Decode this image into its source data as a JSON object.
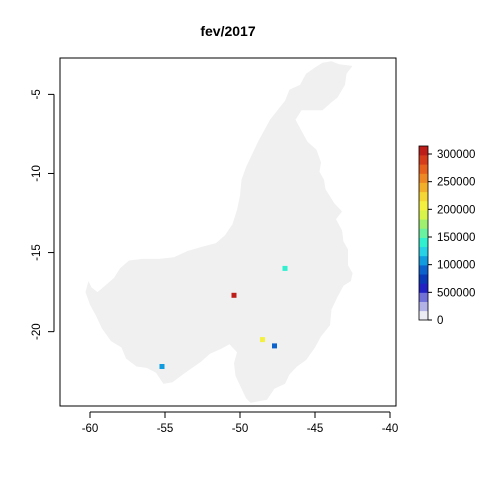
{
  "chart_data": {
    "type": "heatmap",
    "title": "fev/2017",
    "xlabel": "",
    "ylabel": "",
    "xlim": [
      -62,
      -39.6
    ],
    "ylim": [
      -24.7,
      -2.7
    ],
    "x_ticks": [
      {
        "value": -60,
        "label": "-60"
      },
      {
        "value": -55,
        "label": "-55"
      },
      {
        "value": -50,
        "label": "-50"
      },
      {
        "value": -45,
        "label": "-45"
      },
      {
        "value": -40,
        "label": "-40"
      }
    ],
    "y_ticks": [
      {
        "value": -5,
        "label": "-5"
      },
      {
        "value": -10,
        "label": "-10"
      },
      {
        "value": -15,
        "label": "-15"
      },
      {
        "value": -20,
        "label": "-20"
      }
    ],
    "region_color": "#f0f0f0",
    "region_outline": [
      [
        -49.3,
        -24.5
      ],
      [
        -48.2,
        -24.3
      ],
      [
        -47.7,
        -23.6
      ],
      [
        -47.0,
        -23.3
      ],
      [
        -46.7,
        -22.7
      ],
      [
        -46.2,
        -22.2
      ],
      [
        -45.6,
        -21.8
      ],
      [
        -45.0,
        -21.0
      ],
      [
        -44.6,
        -20.3
      ],
      [
        -44.0,
        -19.6
      ],
      [
        -43.9,
        -18.6
      ],
      [
        -43.5,
        -17.8
      ],
      [
        -43.1,
        -17.1
      ],
      [
        -42.6,
        -16.8
      ],
      [
        -42.5,
        -16.3
      ],
      [
        -42.8,
        -15.8
      ],
      [
        -42.8,
        -14.8
      ],
      [
        -43.1,
        -14.3
      ],
      [
        -43.2,
        -13.6
      ],
      [
        -43.6,
        -12.9
      ],
      [
        -43.2,
        -12.4
      ],
      [
        -43.7,
        -11.9
      ],
      [
        -44.3,
        -11.0
      ],
      [
        -44.4,
        -10.4
      ],
      [
        -44.7,
        -9.9
      ],
      [
        -44.6,
        -9.3
      ],
      [
        -44.9,
        -8.5
      ],
      [
        -45.5,
        -8.0
      ],
      [
        -45.9,
        -7.3
      ],
      [
        -46.3,
        -6.6
      ],
      [
        -45.9,
        -6.0
      ],
      [
        -44.5,
        -6.0
      ],
      [
        -43.9,
        -5.5
      ],
      [
        -43.5,
        -5.2
      ],
      [
        -43.0,
        -4.4
      ],
      [
        -42.9,
        -3.7
      ],
      [
        -42.5,
        -3.2
      ],
      [
        -43.4,
        -3.1
      ],
      [
        -43.9,
        -2.9
      ],
      [
        -44.5,
        -3.0
      ],
      [
        -45.0,
        -3.3
      ],
      [
        -45.6,
        -3.7
      ],
      [
        -46.0,
        -4.4
      ],
      [
        -46.7,
        -4.7
      ],
      [
        -47.0,
        -5.4
      ],
      [
        -47.5,
        -6.0
      ],
      [
        -48.0,
        -6.6
      ],
      [
        -48.4,
        -7.3
      ],
      [
        -48.8,
        -8.0
      ],
      [
        -49.2,
        -8.8
      ],
      [
        -49.6,
        -9.6
      ],
      [
        -49.9,
        -10.4
      ],
      [
        -50.0,
        -11.4
      ],
      [
        -50.2,
        -12.3
      ],
      [
        -50.5,
        -13.2
      ],
      [
        -51.0,
        -13.9
      ],
      [
        -51.6,
        -14.4
      ],
      [
        -52.4,
        -14.6
      ],
      [
        -53.5,
        -14.9
      ],
      [
        -54.4,
        -15.3
      ],
      [
        -55.4,
        -15.4
      ],
      [
        -56.5,
        -15.4
      ],
      [
        -57.4,
        -15.5
      ],
      [
        -58.0,
        -16.0
      ],
      [
        -58.4,
        -16.6
      ],
      [
        -59.0,
        -17.1
      ],
      [
        -59.5,
        -17.5
      ],
      [
        -59.9,
        -17.2
      ],
      [
        -60.1,
        -16.8
      ],
      [
        -60.3,
        -17.5
      ],
      [
        -60.0,
        -18.3
      ],
      [
        -59.6,
        -19.0
      ],
      [
        -59.2,
        -19.8
      ],
      [
        -58.6,
        -20.6
      ],
      [
        -57.9,
        -21.0
      ],
      [
        -57.6,
        -21.7
      ],
      [
        -56.9,
        -22.2
      ],
      [
        -56.2,
        -22.3
      ],
      [
        -55.6,
        -22.6
      ],
      [
        -55.1,
        -23.3
      ],
      [
        -54.5,
        -23.2
      ],
      [
        -53.8,
        -22.7
      ],
      [
        -53.2,
        -22.3
      ],
      [
        -52.6,
        -21.9
      ],
      [
        -52.0,
        -21.4
      ],
      [
        -51.3,
        -21.1
      ],
      [
        -50.7,
        -20.8
      ],
      [
        -50.2,
        -21.3
      ],
      [
        -50.4,
        -22.0
      ],
      [
        -50.3,
        -22.8
      ],
      [
        -49.9,
        -23.6
      ],
      [
        -49.6,
        -24.2
      ]
    ],
    "points": [
      {
        "x": -50.4,
        "y": -17.7,
        "value": 310000
      },
      {
        "x": -47.0,
        "y": -16.0,
        "value": 150000
      },
      {
        "x": -48.5,
        "y": -20.5,
        "value": 210000
      },
      {
        "x": -47.7,
        "y": -20.9,
        "value": 90000
      },
      {
        "x": -55.2,
        "y": -22.2,
        "value": 115000
      }
    ],
    "legend": {
      "placement": "right",
      "labels": [
        "0",
        "500000",
        "100000",
        "150000",
        "200000",
        "250000",
        "300000"
      ],
      "colors": [
        "#ececf4",
        "#b3b2e6",
        "#7271d8",
        "#2222c4",
        "#0a3ab8",
        "#0c62cc",
        "#109cde",
        "#28d2e6",
        "#30f0d0",
        "#6af2a0",
        "#a0f070",
        "#d8f44a",
        "#f4f040",
        "#f4d634",
        "#f2b02a",
        "#ee8824",
        "#e6601e",
        "#d43c1c",
        "#be1e1a"
      ]
    }
  }
}
